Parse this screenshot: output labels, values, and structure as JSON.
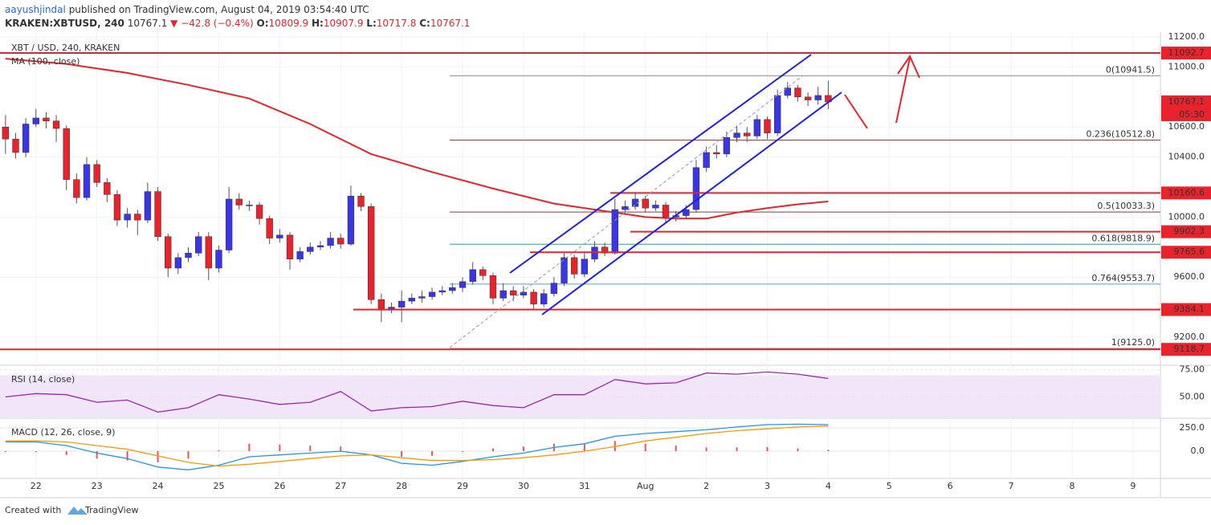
{
  "header": {
    "author": "aayushjindal",
    "published": "published on TradingView.com, August 04, 2019 03:54:40 UTC",
    "symbol": "KRAKEN:XBTUSD, 240",
    "price": "10767.1",
    "change": "▼ −42.8 (−0.4%)",
    "ohlc": [
      {
        "label": "O:",
        "value": "10809.9"
      },
      {
        "label": "H:",
        "value": "10907.9"
      },
      {
        "label": "L:",
        "value": "10717.8"
      },
      {
        "label": "C:",
        "value": "10767.1"
      }
    ]
  },
  "chart_data": [
    {
      "type": "candlestick",
      "title": "XBT / USD, 240, KRAKEN",
      "bull_color": "#3b35e8",
      "bear_color": "#e8232b",
      "xlim": [
        21.41,
        40.45
      ],
      "xticks": [
        22,
        23,
        24,
        25,
        26,
        27,
        28,
        29,
        30,
        31,
        {
          "value": 32,
          "label": "Aug"
        },
        {
          "value": 33,
          "label": "2"
        },
        {
          "value": 34,
          "label": "3"
        },
        {
          "value": 35,
          "label": "4"
        },
        {
          "value": 36,
          "label": "5"
        },
        {
          "value": 37,
          "label": "6"
        },
        {
          "value": 38,
          "label": "7"
        },
        {
          "value": 39,
          "label": "8"
        },
        {
          "value": 40,
          "label": "9"
        }
      ],
      "ylim": [
        9029,
        11232
      ],
      "yticks": [
        {
          "value": 11200,
          "label": "11200.0"
        },
        {
          "value": 11000,
          "label": "11000.0"
        },
        {
          "value": 10600,
          "label": "10600.0"
        },
        {
          "value": 10400,
          "label": "10400.0"
        },
        {
          "value": 10000,
          "label": "10000.0"
        },
        {
          "value": 9600,
          "label": "9600.0"
        },
        {
          "value": 9200,
          "label": "9200.0"
        }
      ],
      "grid": true,
      "x": [
        21.5,
        21.667,
        21.833,
        22,
        22.167,
        22.333,
        22.5,
        22.667,
        22.833,
        23,
        23.167,
        23.333,
        23.5,
        23.667,
        23.833,
        24,
        24.167,
        24.333,
        24.5,
        24.667,
        24.833,
        25,
        25.167,
        25.333,
        25.5,
        25.667,
        25.833,
        26,
        26.167,
        26.333,
        26.5,
        26.667,
        26.833,
        27,
        27.167,
        27.333,
        27.5,
        27.667,
        27.833,
        28,
        28.167,
        28.333,
        28.5,
        28.667,
        28.833,
        29,
        29.167,
        29.333,
        29.5,
        29.667,
        29.833,
        30,
        30.167,
        30.333,
        30.5,
        30.667,
        30.833,
        31,
        31.167,
        31.333,
        31.5,
        31.667,
        31.833,
        32,
        32.167,
        32.333,
        32.5,
        32.667,
        32.833,
        33,
        33.167,
        33.333,
        33.5,
        33.667,
        33.833,
        34,
        34.167,
        34.333,
        34.5,
        34.667,
        34.833,
        35
      ],
      "open": [
        10600,
        10520,
        10430,
        10620,
        10660,
        10640,
        10590,
        10250,
        10130,
        10350,
        10230,
        10150,
        9980,
        10020,
        9980,
        10170,
        9870,
        9660,
        9730,
        9760,
        9870,
        9660,
        9780,
        10120,
        10080,
        10080,
        9990,
        9860,
        9880,
        9720,
        9770,
        9800,
        9810,
        9860,
        9820,
        10140,
        10070,
        9450,
        9380,
        9400,
        9440,
        9460,
        9470,
        9500,
        9510,
        9530,
        9570,
        9650,
        9610,
        9460,
        9510,
        9480,
        9500,
        9420,
        9490,
        9560,
        9730,
        9620,
        9720,
        9800,
        9760,
        10050,
        10070,
        10120,
        10060,
        10080,
        10000,
        10010,
        10050,
        10330,
        10430,
        10420,
        10530,
        10560,
        10540,
        10650,
        10560,
        10810,
        10860,
        10800,
        10780,
        10809.9
      ],
      "high": [
        10680,
        10560,
        10660,
        10720,
        10700,
        10680,
        10610,
        10290,
        10400,
        10380,
        10260,
        10180,
        10060,
        10050,
        10230,
        10200,
        9890,
        9760,
        9800,
        9900,
        9900,
        9810,
        10200,
        10160,
        10110,
        10100,
        10010,
        9920,
        9900,
        9800,
        9830,
        9840,
        9900,
        9890,
        10210,
        10160,
        10090,
        9490,
        9430,
        9510,
        9490,
        9510,
        9530,
        9540,
        9560,
        9600,
        9700,
        9670,
        9630,
        9560,
        9540,
        9540,
        9520,
        9520,
        9600,
        9760,
        9750,
        9760,
        9840,
        9830,
        10120,
        10110,
        10160,
        10140,
        10110,
        10100,
        10040,
        10080,
        10380,
        10470,
        10480,
        10570,
        10610,
        10600,
        10680,
        10670,
        10850,
        10900,
        10880,
        10830,
        10870,
        10907.9
      ],
      "low": [
        10420,
        10390,
        10400,
        10600,
        10590,
        10500,
        10180,
        10090,
        10110,
        10200,
        10100,
        9940,
        9930,
        9880,
        9960,
        9840,
        9600,
        9620,
        9700,
        9740,
        9580,
        9630,
        9760,
        10050,
        10040,
        9950,
        9820,
        9830,
        9650,
        9700,
        9750,
        9780,
        9790,
        9790,
        9810,
        10040,
        9420,
        9300,
        9360,
        9300,
        9420,
        9430,
        9450,
        9480,
        9490,
        9500,
        9550,
        9580,
        9420,
        9440,
        9440,
        9460,
        9390,
        9400,
        9470,
        9540,
        9590,
        9600,
        9700,
        9740,
        9750,
        10020,
        10050,
        10030,
        10040,
        9960,
        9970,
        9990,
        10030,
        10300,
        10390,
        10400,
        10500,
        10500,
        10520,
        10520,
        10540,
        10790,
        10770,
        10740,
        10750,
        10717.8
      ],
      "close": [
        10520,
        10430,
        10620,
        10660,
        10640,
        10590,
        10250,
        10130,
        10350,
        10230,
        10150,
        9980,
        10020,
        9980,
        10170,
        9870,
        9660,
        9730,
        9760,
        9870,
        9660,
        9780,
        10120,
        10080,
        10080,
        9990,
        9860,
        9880,
        9720,
        9770,
        9800,
        9810,
        9860,
        9820,
        10140,
        10070,
        9450,
        9380,
        9400,
        9440,
        9460,
        9470,
        9500,
        9510,
        9530,
        9570,
        9650,
        9610,
        9460,
        9510,
        9480,
        9500,
        9420,
        9490,
        9560,
        9730,
        9620,
        9720,
        9800,
        9760,
        10050,
        10070,
        10120,
        10060,
        10080,
        10000,
        10010,
        10050,
        10330,
        10430,
        10420,
        10530,
        10560,
        10540,
        10650,
        10560,
        10810,
        10860,
        10800,
        10780,
        10810,
        10767.1
      ],
      "ma": {
        "name": "MA (100, close)",
        "color": "#e8232b",
        "x": [
          21.5,
          22.5,
          23.5,
          24.5,
          25.5,
          26.5,
          27.5,
          28.5,
          29.5,
          30.5,
          31.5,
          32,
          32.5,
          33,
          33.5,
          34,
          34.5,
          35
        ],
        "values": [
          11055,
          11020,
          10960,
          10880,
          10790,
          10620,
          10420,
          10300,
          10190,
          10090,
          10030,
          10000,
          9990,
          9990,
          10030,
          10060,
          10085,
          10104
        ]
      },
      "levels": [
        11092.7,
        10160.6,
        9902.3,
        9765.6,
        9384.1,
        9118.7
      ],
      "level_color": "#e8232b",
      "fib": [
        {
          "value": 10941.5,
          "label": "0(10941.5)",
          "color": "#8a8d96"
        },
        {
          "value": 10512.8,
          "label": "0.236(10512.8)",
          "color": "#b03a2e"
        },
        {
          "value": 10033.3,
          "label": "0.5(10033.3)",
          "color": "#8b3a3a"
        },
        {
          "value": 9818.9,
          "label": "0.618(9818.9)",
          "color": "#26a69a"
        },
        {
          "value": 9553.7,
          "label": "0.764(9553.7)",
          "color": "#4aa3d6"
        },
        {
          "value": 9125.0,
          "label": "1(9125.0)",
          "color": "#4aa3d6"
        }
      ],
      "last_price": 10767.1,
      "countdown": "05:30"
    },
    {
      "type": "line",
      "title": "RSI (14, close)",
      "ylim": [
        31,
        77
      ],
      "yticks": [
        {
          "value": 75,
          "label": "75.00"
        },
        {
          "value": 50,
          "label": "50.00"
        }
      ],
      "band": [
        30,
        70
      ],
      "band_color": "#f2e6fb",
      "x": [
        21.5,
        22,
        22.5,
        23,
        23.5,
        24,
        24.5,
        25,
        25.5,
        26,
        26.5,
        27,
        27.5,
        28,
        28.5,
        29,
        29.5,
        30,
        30.5,
        31,
        31.5,
        32,
        32.5,
        33,
        33.5,
        34,
        34.5,
        35
      ],
      "series": [
        {
          "name": "RSI",
          "color": "#9c27b0",
          "values": [
            50,
            53,
            52,
            45,
            47,
            36,
            40,
            52,
            48,
            43,
            45,
            55,
            37,
            40,
            41,
            46,
            42,
            40,
            52,
            52,
            66,
            62,
            63,
            72,
            71,
            73,
            71,
            67
          ]
        }
      ]
    },
    {
      "type": "line",
      "title": "MACD (12, 26, close, 9)",
      "ylim": [
        -284,
        328
      ],
      "yticks": [
        {
          "value": 250,
          "label": "250.0"
        },
        {
          "value": 0,
          "label": "0.0"
        }
      ],
      "x": [
        21.5,
        22,
        22.5,
        23,
        23.5,
        24,
        24.5,
        25,
        25.5,
        26,
        26.5,
        27,
        27.5,
        28,
        28.5,
        29,
        29.5,
        30,
        30.5,
        31,
        31.5,
        32,
        32.5,
        33,
        33.5,
        34,
        34.5,
        35
      ],
      "histogram": {
        "color": "#ef5350",
        "values": [
          -10,
          -10,
          -40,
          -80,
          -100,
          -120,
          -80,
          10,
          80,
          70,
          60,
          50,
          0,
          -60,
          -50,
          -10,
          30,
          50,
          80,
          80,
          110,
          80,
          60,
          40,
          40,
          45,
          30,
          15
        ]
      },
      "series": [
        {
          "name": "MACD",
          "color": "#2196f3",
          "values": [
            100,
            100,
            60,
            -20,
            -80,
            -170,
            -200,
            -150,
            -60,
            -40,
            -20,
            0,
            -40,
            -130,
            -150,
            -110,
            -60,
            -20,
            40,
            80,
            160,
            190,
            210,
            230,
            260,
            285,
            290,
            285
          ]
        },
        {
          "name": "Signal",
          "color": "#ff9800",
          "values": [
            110,
            110,
            100,
            60,
            20,
            -50,
            -120,
            -160,
            -140,
            -110,
            -80,
            -50,
            -40,
            -70,
            -100,
            -100,
            -90,
            -70,
            -40,
            0,
            50,
            110,
            150,
            190,
            220,
            240,
            260,
            270
          ]
        }
      ]
    }
  ],
  "footer": {
    "created": "Created with",
    "brand": "TradingView"
  }
}
